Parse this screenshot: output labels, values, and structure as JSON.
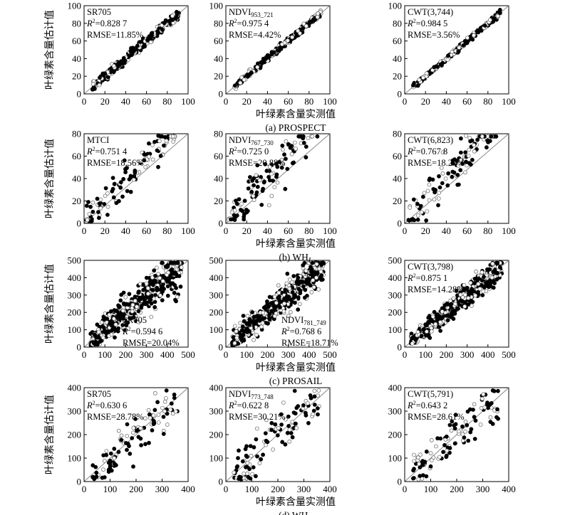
{
  "figure": {
    "xlabel": "叶绿素含量实测值",
    "ylabel": "叶绿素含量估计值"
  },
  "rows": [
    {
      "caption_letter": "(a)",
      "caption_text": "PROSPECT",
      "caption_sub": ""
    },
    {
      "caption_letter": "(b)",
      "caption_text": "WH",
      "caption_sub": "L"
    },
    {
      "caption_letter": "(c)",
      "caption_text": "PROSAIL",
      "caption_sub": ""
    },
    {
      "caption_letter": "(d)",
      "caption_text": "WH",
      "caption_sub": "C"
    }
  ],
  "chart_data": [
    {
      "type": "scatter",
      "panel": "a1",
      "label_main": "SR705",
      "label_sub": "",
      "r2": "0.828 7",
      "rmse": "11.85%",
      "xlim": [
        0,
        100
      ],
      "ylim": [
        0,
        100
      ],
      "ticks": [
        0,
        20,
        40,
        60,
        80,
        100
      ],
      "n": 300,
      "xmin": 8,
      "xmax": 92,
      "noise": 2.6,
      "rmse_pct": 11.85
    },
    {
      "type": "scatter",
      "panel": "a2",
      "label_main": "NDVI",
      "label_sub": "953_721",
      "r2": "0.975 4",
      "rmse": "4.42%",
      "xlim": [
        0,
        100
      ],
      "ylim": [
        0,
        100
      ],
      "ticks": [
        0,
        20,
        40,
        60,
        80,
        100
      ],
      "n": 300,
      "xmin": 8,
      "xmax": 92,
      "noise": 1.8,
      "rmse_pct": 4.42
    },
    {
      "type": "scatter",
      "panel": "a3",
      "label_main": "CWT(3,744)",
      "label_sub": "",
      "r2": "0.984 5",
      "rmse": "3.56%",
      "xlim": [
        0,
        100
      ],
      "ylim": [
        0,
        100
      ],
      "ticks": [
        0,
        20,
        40,
        60,
        80,
        100
      ],
      "n": 300,
      "xmin": 8,
      "xmax": 92,
      "noise": 1.5,
      "rmse_pct": 3.56
    },
    {
      "type": "scatter",
      "panel": "b1",
      "label_main": "MTCI",
      "label_sub": "",
      "r2": "0.751 4",
      "rmse": "18.56%",
      "xlim": [
        0,
        100
      ],
      "ylim": [
        0,
        80
      ],
      "ticks": [
        0,
        20,
        40,
        60,
        80,
        100
      ],
      "yticks": [
        0,
        20,
        40,
        60,
        80
      ],
      "n": 120,
      "xmin": 2,
      "xmax": 88,
      "noise": 8,
      "rmse_pct": 18.56
    },
    {
      "type": "scatter",
      "panel": "b2",
      "label_main": "NDVI",
      "label_sub": "767_730",
      "r2": "0.725 0",
      "rmse": "20.88%",
      "xlim": [
        0,
        100
      ],
      "ylim": [
        0,
        80
      ],
      "ticks": [
        0,
        20,
        40,
        60,
        80,
        100
      ],
      "yticks": [
        0,
        20,
        40,
        60,
        80
      ],
      "n": 120,
      "xmin": 2,
      "xmax": 88,
      "noise": 9,
      "rmse_pct": 20.88
    },
    {
      "type": "scatter",
      "panel": "b3",
      "label_main": "CWT(6,823)",
      "label_sub": "",
      "r2": "0.767 8",
      "rmse": "18.27%",
      "xlim": [
        0,
        100
      ],
      "ylim": [
        0,
        80
      ],
      "ticks": [
        0,
        20,
        40,
        60,
        80,
        100
      ],
      "yticks": [
        0,
        20,
        40,
        60,
        80
      ],
      "n": 120,
      "xmin": 2,
      "xmax": 88,
      "noise": 8,
      "rmse_pct": 18.27
    },
    {
      "type": "scatter",
      "panel": "c1",
      "label_main": "SR705",
      "label_sub": "",
      "r2": "0.594 6",
      "rmse": "20.04%",
      "xlim": [
        0,
        500
      ],
      "ylim": [
        0,
        500
      ],
      "ticks": [
        0,
        100,
        200,
        300,
        400,
        500
      ],
      "n": 500,
      "xmin": 30,
      "xmax": 470,
      "noise": 45,
      "rmse_pct": 20.04
    },
    {
      "type": "scatter",
      "panel": "c2",
      "label_main": "NDVI",
      "label_sub": "781_749",
      "r2": "0.768 6",
      "rmse": "18.71%",
      "xlim": [
        0,
        500
      ],
      "ylim": [
        0,
        500
      ],
      "ticks": [
        0,
        100,
        200,
        300,
        400,
        500
      ],
      "n": 500,
      "xmin": 30,
      "xmax": 470,
      "noise": 38,
      "rmse_pct": 18.71
    },
    {
      "type": "scatter",
      "panel": "c3",
      "label_main": "CWT(3,798)",
      "label_sub": "",
      "r2": "0.875 1",
      "rmse": "14.28%",
      "xlim": [
        0,
        500
      ],
      "ylim": [
        0,
        500
      ],
      "ticks": [
        0,
        100,
        200,
        300,
        400,
        500
      ],
      "n": 500,
      "xmin": 30,
      "xmax": 470,
      "noise": 28,
      "rmse_pct": 14.28
    },
    {
      "type": "scatter",
      "panel": "d1",
      "label_main": "SR705",
      "label_sub": "",
      "r2": "0.630 6",
      "rmse": "28.78%",
      "xlim": [
        0,
        400
      ],
      "ylim": [
        0,
        400
      ],
      "ticks": [
        0,
        100,
        200,
        300,
        400
      ],
      "n": 110,
      "xmin": 30,
      "xmax": 360,
      "noise": 45,
      "rmse_pct": 28.78
    },
    {
      "type": "scatter",
      "panel": "d2",
      "label_main": "NDVI",
      "label_sub": "773_748",
      "r2": "0.622 8",
      "rmse": "30.21%",
      "xlim": [
        0,
        400
      ],
      "ylim": [
        0,
        400
      ],
      "ticks": [
        0,
        100,
        200,
        300,
        400
      ],
      "n": 110,
      "xmin": 30,
      "xmax": 360,
      "noise": 47,
      "rmse_pct": 30.21
    },
    {
      "type": "scatter",
      "panel": "d3",
      "label_main": "CWT(5,791)",
      "label_sub": "",
      "r2": "0.643 2",
      "rmse": "28.61%",
      "xlim": [
        0,
        400
      ],
      "ylim": [
        0,
        400
      ],
      "ticks": [
        0,
        100,
        200,
        300,
        400
      ],
      "n": 110,
      "xmin": 30,
      "xmax": 360,
      "noise": 44,
      "rmse_pct": 28.61
    }
  ]
}
